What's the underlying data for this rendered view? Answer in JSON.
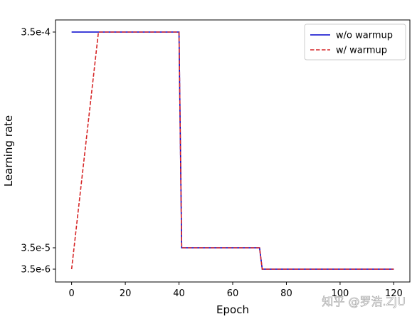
{
  "chart_data": {
    "type": "line",
    "title": "",
    "xlabel": "Epoch",
    "ylabel": "Learning rate",
    "xlim": [
      -6,
      126
    ],
    "ylim": [
      5e-07,
      0.00037
    ],
    "xticks": [
      0,
      20,
      40,
      60,
      80,
      100,
      120
    ],
    "xtick_labels": [
      "0",
      "20",
      "40",
      "60",
      "80",
      "100",
      "120"
    ],
    "yticks": [
      3.5e-06,
      3.5e-05,
      0.00035
    ],
    "ytick_labels": [
      "3.5e-6",
      "3.5e-5",
      "3.5e-4"
    ],
    "y_scale_note": "piecewise tick spacing as drawn",
    "grid": false,
    "legend_position": "top-right",
    "series": [
      {
        "name": "w/o warmup",
        "color": "#0000cc",
        "style": "solid",
        "x": [
          0,
          40,
          40,
          41,
          41,
          70,
          70,
          71,
          71,
          120
        ],
        "y": [
          0.00035,
          0.00035,
          0.00035,
          3.5e-05,
          3.5e-05,
          3.5e-05,
          3.5e-05,
          3.5e-06,
          3.5e-06,
          3.5e-06
        ]
      },
      {
        "name": "w/ warmup",
        "color": "#d62728",
        "style": "dashed",
        "x": [
          0,
          10,
          40,
          41,
          70,
          71,
          120
        ],
        "y": [
          3.5e-06,
          0.00035,
          0.00035,
          3.5e-05,
          3.5e-05,
          3.5e-06,
          3.5e-06
        ]
      }
    ]
  },
  "watermark": "知乎 @罗浩.ZJU"
}
